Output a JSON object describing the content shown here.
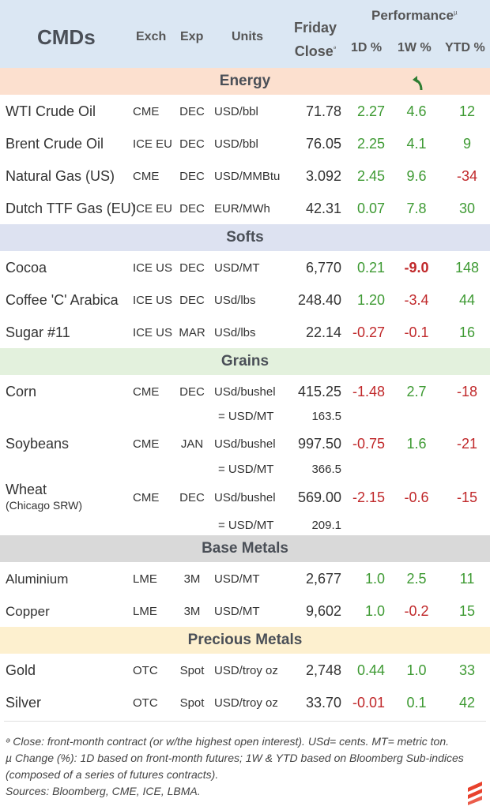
{
  "header": {
    "title": "CMDs",
    "exch": "Exch",
    "exp": "Exp",
    "units": "Units",
    "friday_line1": "Friday",
    "friday_line2": "Close",
    "close_marker": "ᵊ",
    "performance": "Performance",
    "perf_marker": "µ",
    "d1": "1D %",
    "w1": "1W %",
    "ytd": "YTD %"
  },
  "sections": {
    "energy": "Energy",
    "softs": "Softs",
    "grains": "Grains",
    "base": "Base Metals",
    "precious": "Precious Metals"
  },
  "rows": {
    "wti": {
      "name": "WTI Crude Oil",
      "exch": "CME",
      "exp": "DEC",
      "units": "USD/bbl",
      "close": "71.78",
      "d1": "2.27",
      "w1": "4.6",
      "ytd": "12"
    },
    "brent": {
      "name": "Brent Crude Oil",
      "exch": "ICE EU",
      "exp": "DEC",
      "units": "USD/bbl",
      "close": "76.05",
      "d1": "2.25",
      "w1": "4.1",
      "ytd": "9"
    },
    "natgas": {
      "name": "Natural Gas (US)",
      "exch": "CME",
      "exp": "DEC",
      "units": "USD/MMBtu",
      "close": "3.092",
      "d1": "2.45",
      "w1": "9.6",
      "ytd": "-34"
    },
    "ttf": {
      "name": "Dutch TTF Gas (EU)",
      "exch": "ICE EU",
      "exp": "DEC",
      "units": "EUR/MWh",
      "close": "42.31",
      "d1": "0.07",
      "w1": "7.8",
      "ytd": "30"
    },
    "cocoa": {
      "name": "Cocoa",
      "exch": "ICE US",
      "exp": "DEC",
      "units": "USD/MT",
      "close": "6,770",
      "d1": "0.21",
      "w1": "-9.0",
      "ytd": "148"
    },
    "coffee": {
      "name": "Coffee 'C' Arabica",
      "exch": "ICE US",
      "exp": "DEC",
      "units": "USd/lbs",
      "close": "248.40",
      "d1": "1.20",
      "w1": "-3.4",
      "ytd": "44"
    },
    "sugar": {
      "name": "Sugar #11",
      "exch": "ICE US",
      "exp": "MAR",
      "units": "USd/lbs",
      "close": "22.14",
      "d1": "-0.27",
      "w1": "-0.1",
      "ytd": "16"
    },
    "corn": {
      "name": "Corn",
      "exch": "CME",
      "exp": "DEC",
      "units": "USd/bushel",
      "close": "415.25",
      "d1": "-1.48",
      "w1": "2.7",
      "ytd": "-18",
      "conv_units": "= USD/MT",
      "conv_val": "163.5"
    },
    "soy": {
      "name": "Soybeans",
      "exch": "CME",
      "exp": "JAN",
      "units": "USd/bushel",
      "close": "997.50",
      "d1": "-0.75",
      "w1": "1.6",
      "ytd": "-21",
      "conv_units": "= USD/MT",
      "conv_val": "366.5"
    },
    "wheat": {
      "name": "Wheat",
      "name_sub": "(Chicago SRW)",
      "exch": "CME",
      "exp": "DEC",
      "units": "USd/bushel",
      "close": "569.00",
      "d1": "-2.15",
      "w1": "-0.6",
      "ytd": "-15",
      "conv_units": "= USD/MT",
      "conv_val": "209.1"
    },
    "alu": {
      "name": "Aluminium",
      "exch": "LME",
      "exp": "3M",
      "units": "USD/MT",
      "close": "2,677",
      "d1": "1.0",
      "w1": "2.5",
      "ytd": "11"
    },
    "copper": {
      "name": "Copper",
      "exch": "LME",
      "exp": "3M",
      "units": "USD/MT",
      "close": "9,602",
      "d1": "1.0",
      "w1": "-0.2",
      "ytd": "15"
    },
    "gold": {
      "name": "Gold",
      "exch": "OTC",
      "exp": "Spot",
      "units": "USD/troy oz",
      "close": "2,748",
      "d1": "0.44",
      "w1": "1.0",
      "ytd": "33"
    },
    "silver": {
      "name": "Silver",
      "exch": "OTC",
      "exp": "Spot",
      "units": "USD/troy oz",
      "close": "33.70",
      "d1": "-0.01",
      "w1": "0.1",
      "ytd": "42"
    }
  },
  "footer": {
    "note1": "ᵊ Close: front-month contract (or w/the highest open interest). USd= cents. MT= metric ton.",
    "note2": "µ Change (%): 1D based on front-month futures; 1W & YTD based on Bloomberg Sub-indices (composed of a series of futures contracts).",
    "sources": "Sources: Bloomberg, CME, ICE, LBMA."
  },
  "colors": {
    "positive": "#3e9a33",
    "negative": "#c0282a",
    "header_bg": "#dbe7f3",
    "energy_bg": "#fce0cf",
    "softs_bg": "#dde2f1",
    "grains_bg": "#e3f1dd",
    "base_bg": "#d9d9d9",
    "precious_bg": "#fdf0cf",
    "logo": "#e8412c"
  },
  "icons": {
    "arrow": "curved-up-arrow-icon",
    "logo": "brand-logo-icon"
  }
}
